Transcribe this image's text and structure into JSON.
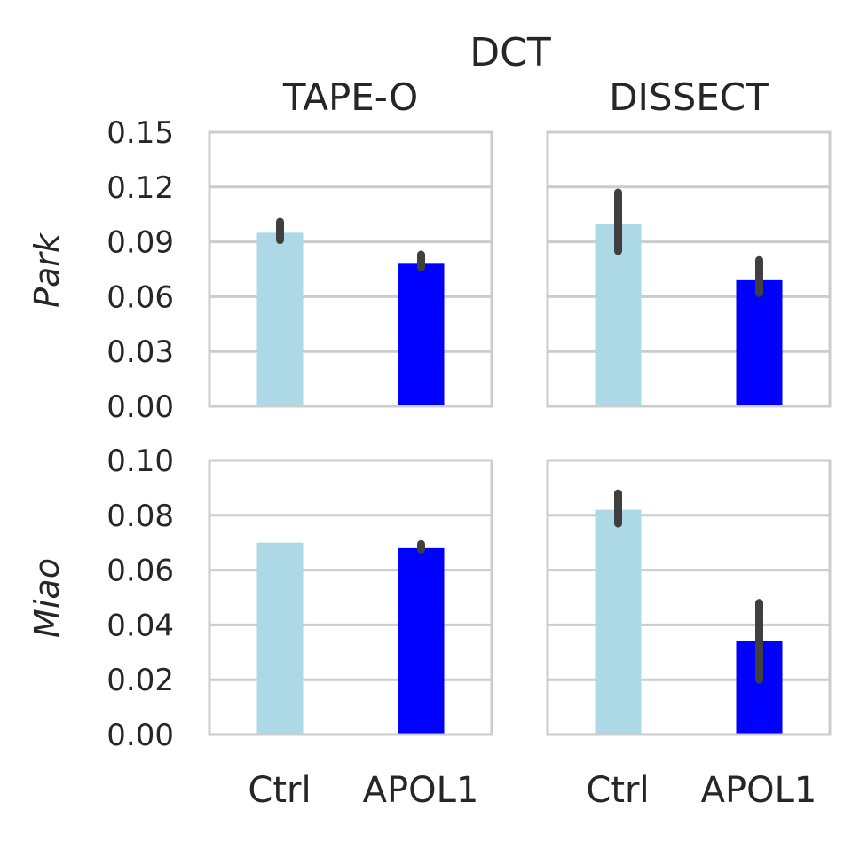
{
  "chart_data": {
    "type": "bar",
    "title": "DCT",
    "columns": [
      "TAPE-O",
      "DISSECT"
    ],
    "rows": [
      "Park",
      "Miao"
    ],
    "categories": [
      "Ctrl",
      "APOL1"
    ],
    "colors": {
      "Ctrl": "#add8e6",
      "APOL1": "#0000ff",
      "errorbar": "#3f3f3f",
      "grid": "#cccccc",
      "text": "#262626"
    },
    "grid": true,
    "row_axes": [
      {
        "ylim": [
          0,
          0.15
        ],
        "yticks": [
          "0.00",
          "0.03",
          "0.06",
          "0.09",
          "0.12",
          "0.15"
        ]
      },
      {
        "ylim": [
          0,
          0.1
        ],
        "yticks": [
          "0.00",
          "0.02",
          "0.04",
          "0.06",
          "0.08",
          "0.10"
        ]
      }
    ],
    "panels": [
      {
        "row": "Park",
        "method": "TAPE-O",
        "values": [
          0.095,
          0.078
        ],
        "error": [
          [
            0.091,
            0.101
          ],
          [
            0.076,
            0.083
          ]
        ]
      },
      {
        "row": "Park",
        "method": "DISSECT",
        "values": [
          0.1,
          0.069
        ],
        "error": [
          [
            0.085,
            0.117
          ],
          [
            0.062,
            0.08
          ]
        ]
      },
      {
        "row": "Miao",
        "method": "TAPE-O",
        "values": [
          0.07,
          0.068
        ],
        "error": [
          [
            0.07,
            0.07
          ],
          [
            0.0675,
            0.0695
          ]
        ]
      },
      {
        "row": "Miao",
        "method": "DISSECT",
        "values": [
          0.082,
          0.034
        ],
        "error": [
          [
            0.077,
            0.088
          ],
          [
            0.02,
            0.048
          ]
        ]
      }
    ]
  }
}
